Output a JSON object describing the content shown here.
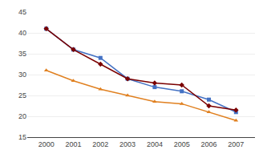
{
  "chart_data": {
    "type": "line",
    "x": [
      2000,
      2001,
      2002,
      2003,
      2004,
      2005,
      2006,
      2007
    ],
    "series": [
      {
        "color": "#4472C4",
        "marker": "square",
        "values": [
          41,
          36,
          34,
          29,
          27,
          26,
          24,
          21
        ]
      },
      {
        "color": "#7B0000",
        "marker": "diamond",
        "values": [
          41,
          36,
          32.5,
          29,
          28,
          27.5,
          22.5,
          21.5
        ]
      },
      {
        "color": "#E08020",
        "marker": "triangle-up",
        "values": [
          31,
          28.5,
          26.5,
          25,
          23.5,
          23,
          21,
          19
        ]
      }
    ],
    "xlim": [
      1999.3,
      2007.7
    ],
    "xticks": [
      2000,
      2001,
      2002,
      2003,
      2004,
      2005,
      2006,
      2007
    ],
    "ylim": [
      15,
      45
    ],
    "yticks": [
      15,
      20,
      25,
      30,
      35,
      40,
      45
    ],
    "grid": true
  }
}
